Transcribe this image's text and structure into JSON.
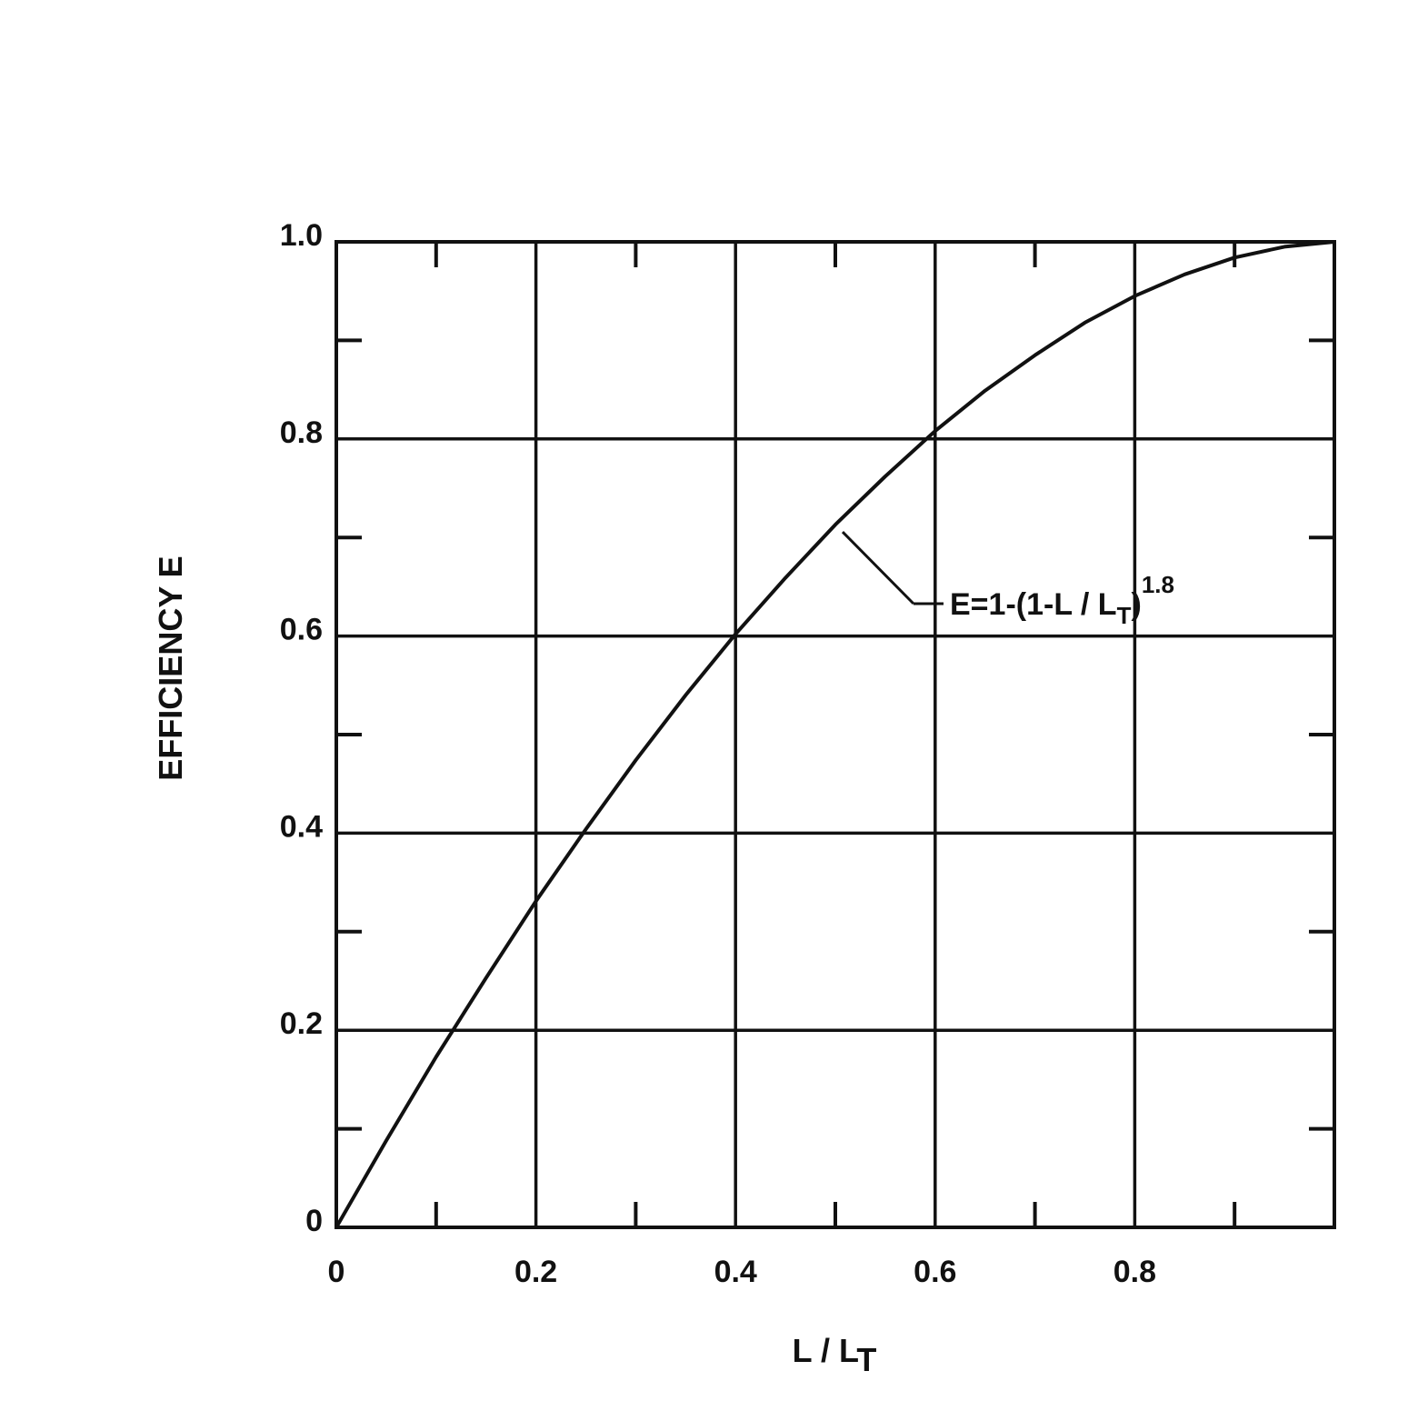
{
  "chart_data": {
    "type": "line",
    "title": "",
    "xlabel": {
      "main": "L / L",
      "sub": "T"
    },
    "ylabel": "EFFICIENCY  E",
    "xlim": [
      0,
      1.0
    ],
    "ylim": [
      0,
      1.0
    ],
    "x_tick_labels": [
      "0",
      "0.2",
      "0.4",
      "0.6",
      "0.8"
    ],
    "x_tick_values": [
      0,
      0.2,
      0.4,
      0.6,
      0.8
    ],
    "y_tick_labels": [
      "0",
      "0.2",
      "0.4",
      "0.6",
      "0.8",
      "1.0"
    ],
    "y_tick_values": [
      0,
      0.2,
      0.4,
      0.6,
      0.8,
      1.0
    ],
    "grid": true,
    "series": [
      {
        "x": [
          0,
          0.05,
          0.1,
          0.15,
          0.2,
          0.25,
          0.3,
          0.35,
          0.4,
          0.45,
          0.5,
          0.55,
          0.6,
          0.65,
          0.7,
          0.75,
          0.8,
          0.85,
          0.9,
          0.95,
          1.0
        ],
        "y": [
          0,
          0.088,
          0.173,
          0.253,
          0.331,
          0.404,
          0.474,
          0.54,
          0.602,
          0.659,
          0.713,
          0.762,
          0.808,
          0.849,
          0.885,
          0.918,
          0.945,
          0.967,
          0.984,
          0.995,
          1.0
        ]
      }
    ],
    "annotations": [
      {
        "text": "E=1-(1-L / L",
        "sub": "T",
        "close": ")",
        "sup": "1.8",
        "points_to": [
          0.5,
          0.713
        ]
      }
    ]
  }
}
